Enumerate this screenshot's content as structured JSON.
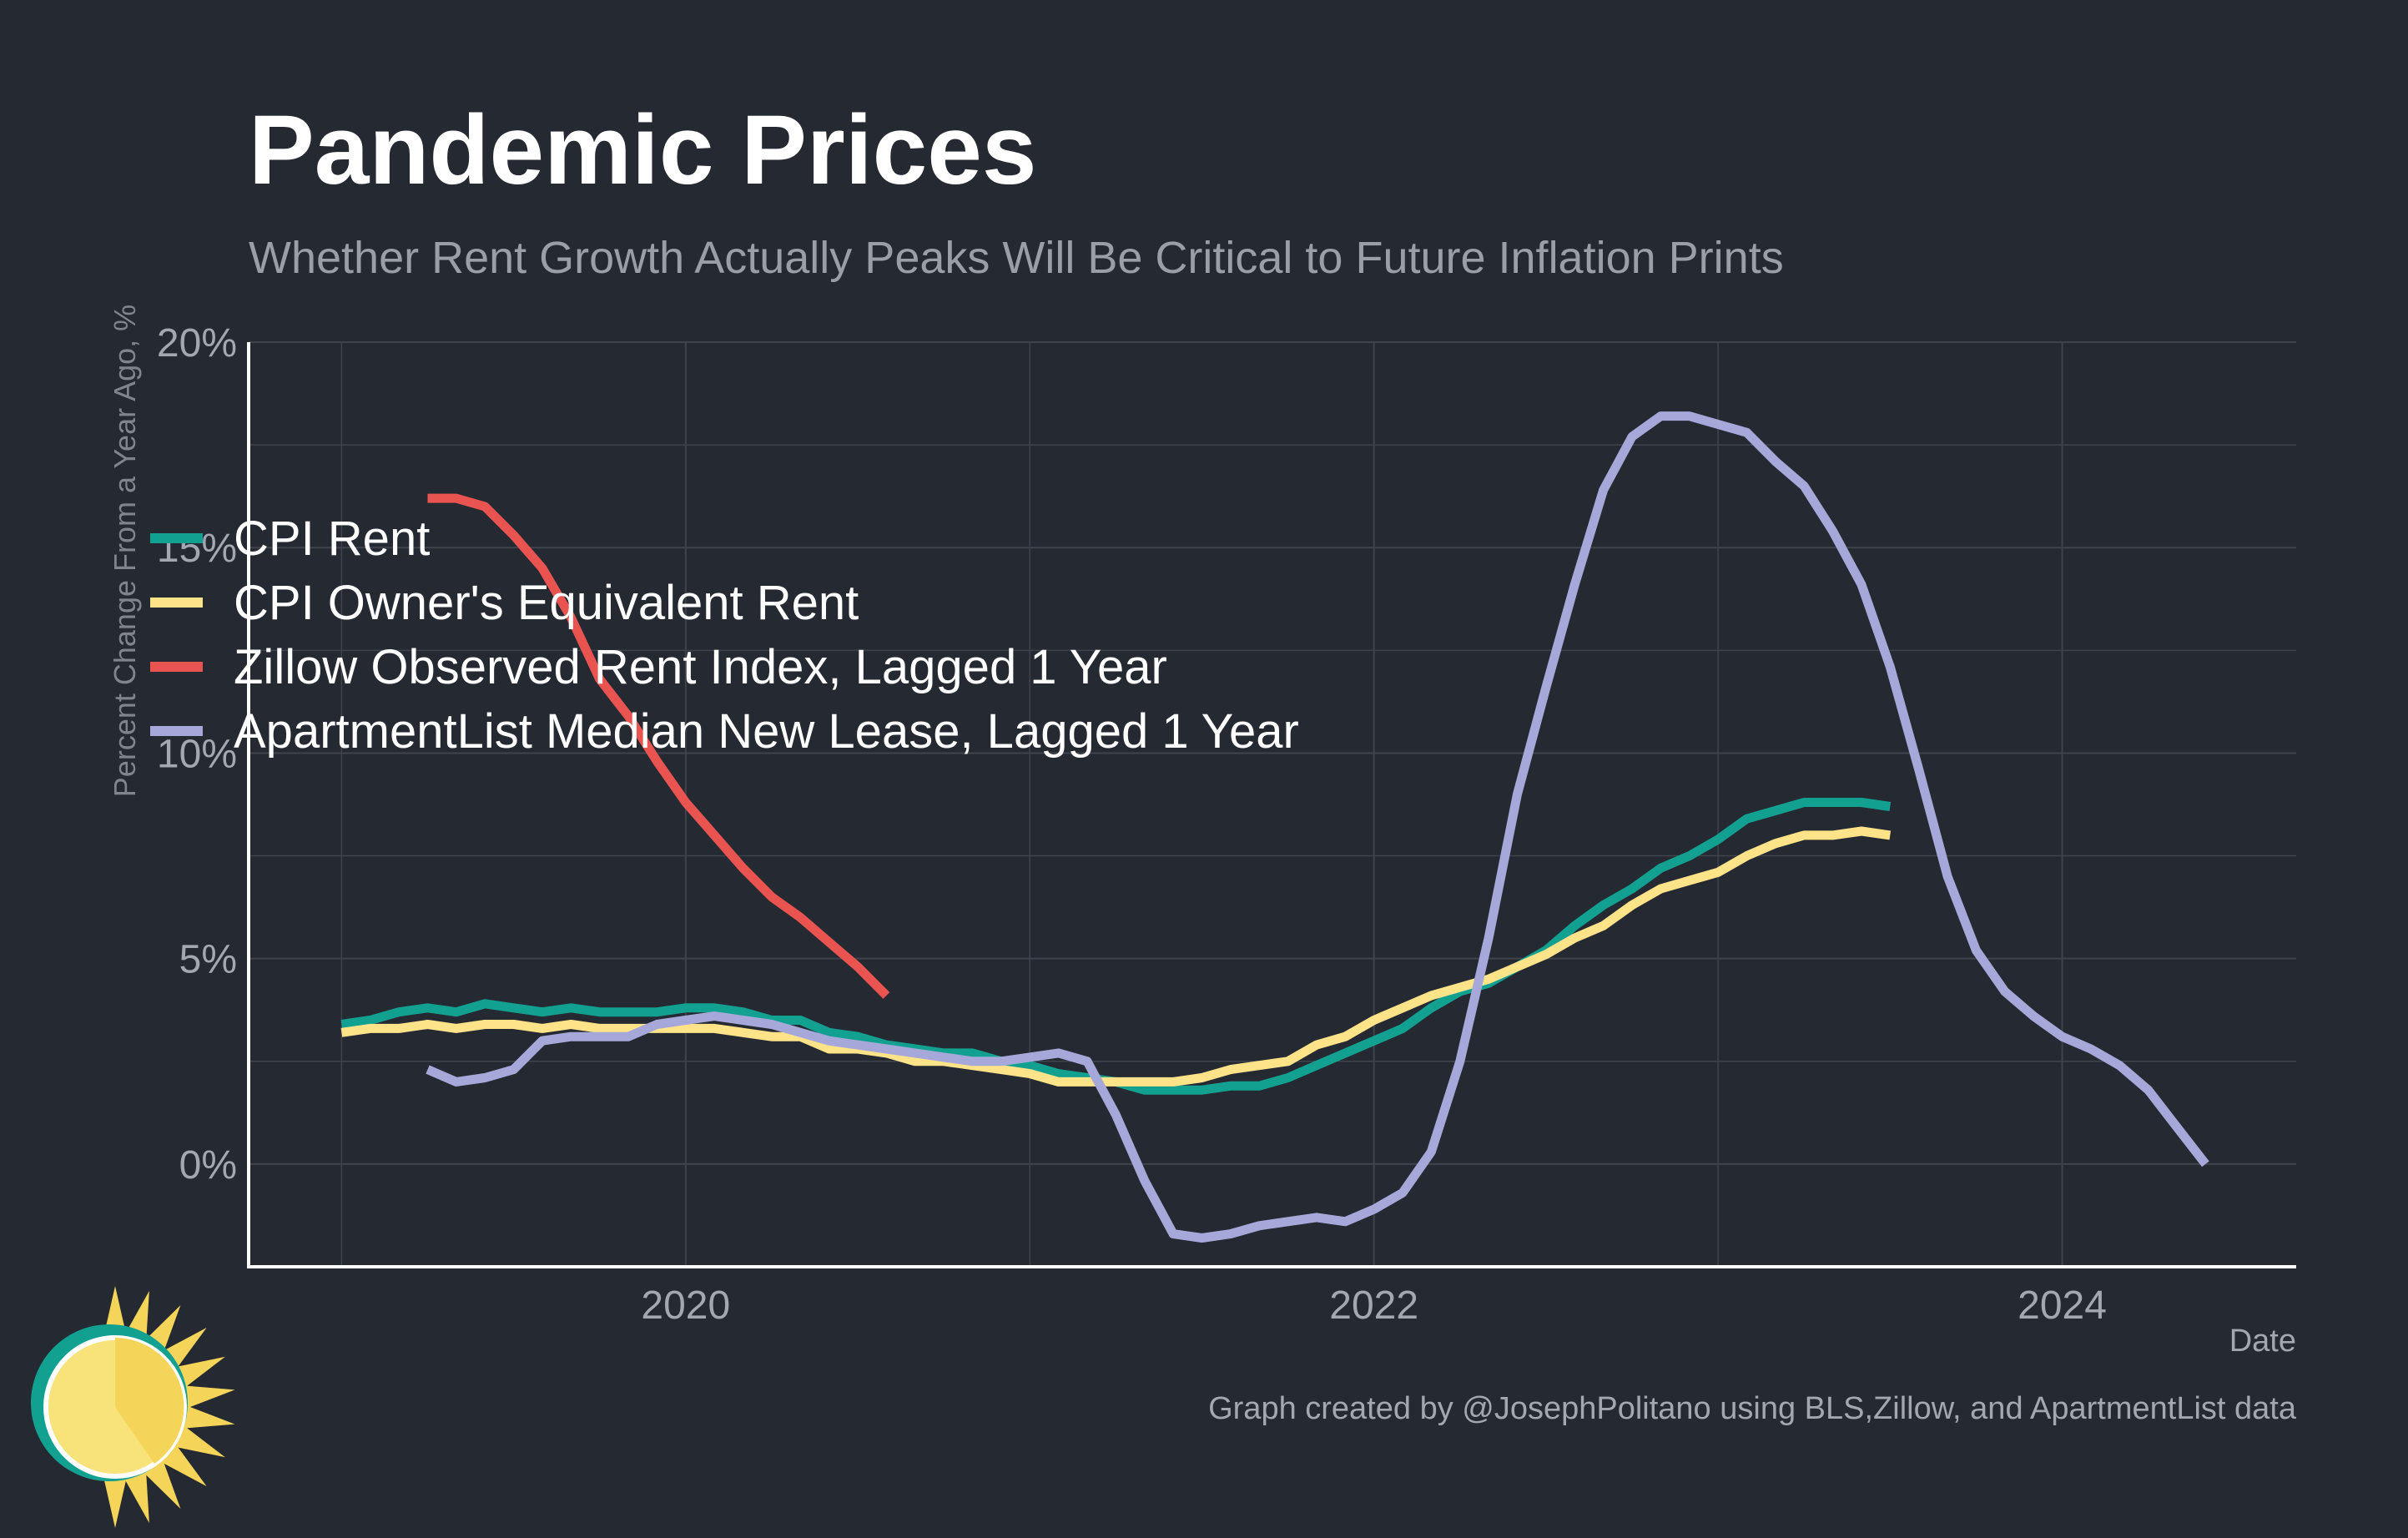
{
  "title": "Pandemic Prices",
  "subtitle": "Whether Rent Growth Actually Peaks Will Be Critical to Future Inflation Prints",
  "caption": "Graph created by @JosephPolitano using BLS,Zillow, and ApartmentList data",
  "colors": {
    "background": "#252932",
    "grid": "#3f434c",
    "axis": "#ffffff",
    "tick_text": "#a3a7b0",
    "title": "#ffffff",
    "subtitle": "#9a9ea7",
    "legend_text": "#ffffff"
  },
  "logo": {
    "icon": "sun-icon",
    "colors": [
      "#f8e27a",
      "#f5d45a",
      "#12a190"
    ]
  },
  "chart_data": {
    "type": "line",
    "xlabel": "Date",
    "ylabel": "Percent Change From a Year Ago, %",
    "xlim": [
      2018.73,
      2024.68
    ],
    "ylim": [
      -2.5,
      20
    ],
    "x_ticks": [
      {
        "value": 2020,
        "label": "2020"
      },
      {
        "value": 2022,
        "label": "2022"
      },
      {
        "value": 2024,
        "label": "2024"
      }
    ],
    "y_ticks": [
      {
        "value": 0,
        "label": "0%"
      },
      {
        "value": 5,
        "label": "5%"
      },
      {
        "value": 10,
        "label": "10%"
      },
      {
        "value": 15,
        "label": "15%"
      },
      {
        "value": 20,
        "label": "20%"
      }
    ],
    "grid": true,
    "legend_position": "left",
    "series": [
      {
        "name": "CPI Rent",
        "color": "#12a190",
        "x_start": "2019-01",
        "values": [
          3.4,
          3.5,
          3.7,
          3.8,
          3.7,
          3.9,
          3.8,
          3.7,
          3.8,
          3.7,
          3.7,
          3.7,
          3.8,
          3.8,
          3.7,
          3.5,
          3.5,
          3.2,
          3.1,
          2.9,
          2.8,
          2.7,
          2.7,
          2.5,
          2.4,
          2.2,
          2.1,
          2.0,
          1.8,
          1.8,
          1.8,
          1.9,
          1.9,
          2.1,
          2.4,
          2.7,
          3.0,
          3.3,
          3.8,
          4.2,
          4.4,
          4.8,
          5.2,
          5.8,
          6.3,
          6.7,
          7.2,
          7.5,
          7.9,
          8.4,
          8.6,
          8.8,
          8.8,
          8.8,
          8.7
        ]
      },
      {
        "name": "CPI Owner's Equivalent Rent",
        "color": "#fee389",
        "x_start": "2019-01",
        "values": [
          3.2,
          3.3,
          3.3,
          3.4,
          3.3,
          3.4,
          3.4,
          3.3,
          3.4,
          3.3,
          3.3,
          3.3,
          3.3,
          3.3,
          3.2,
          3.1,
          3.1,
          2.8,
          2.8,
          2.7,
          2.5,
          2.5,
          2.4,
          2.3,
          2.2,
          2.0,
          2.0,
          2.0,
          2.0,
          2.0,
          2.1,
          2.3,
          2.4,
          2.5,
          2.9,
          3.1,
          3.5,
          3.8,
          4.1,
          4.3,
          4.5,
          4.8,
          5.1,
          5.5,
          5.8,
          6.3,
          6.7,
          6.9,
          7.1,
          7.5,
          7.8,
          8.0,
          8.0,
          8.1,
          8.0
        ]
      },
      {
        "name": "Zillow Observed Rent Index, Lagged 1 Year",
        "color": "#ea5450",
        "x_start": "2019-04",
        "values": [
          16.2,
          16.2,
          16.0,
          15.3,
          14.5,
          13.3,
          11.8,
          10.9,
          9.8,
          8.8,
          8.0,
          7.2,
          6.5,
          6.0,
          5.4,
          4.8,
          4.1
        ]
      },
      {
        "name": "ApartmentList Median New Lease, Lagged 1 Year",
        "color": "#a6a8d9",
        "x_start": "2019-04",
        "values": [
          2.3,
          2.0,
          2.1,
          2.3,
          3.0,
          3.1,
          3.1,
          3.1,
          3.4,
          3.5,
          3.6,
          3.5,
          3.4,
          3.2,
          3.0,
          2.9,
          2.8,
          2.7,
          2.6,
          2.5,
          2.5,
          2.6,
          2.7,
          2.5,
          1.2,
          -0.4,
          -1.7,
          -1.8,
          -1.7,
          -1.5,
          -1.4,
          -1.3,
          -1.4,
          -1.1,
          -0.7,
          0.3,
          2.5,
          5.5,
          9.0,
          11.6,
          14.1,
          16.4,
          17.7,
          18.2,
          18.2,
          18.0,
          17.8,
          17.1,
          16.5,
          15.4,
          14.1,
          12.1,
          9.6,
          7.0,
          5.2,
          4.2,
          3.6,
          3.1,
          2.8,
          2.4,
          1.8,
          0.9,
          0.0
        ]
      }
    ]
  }
}
